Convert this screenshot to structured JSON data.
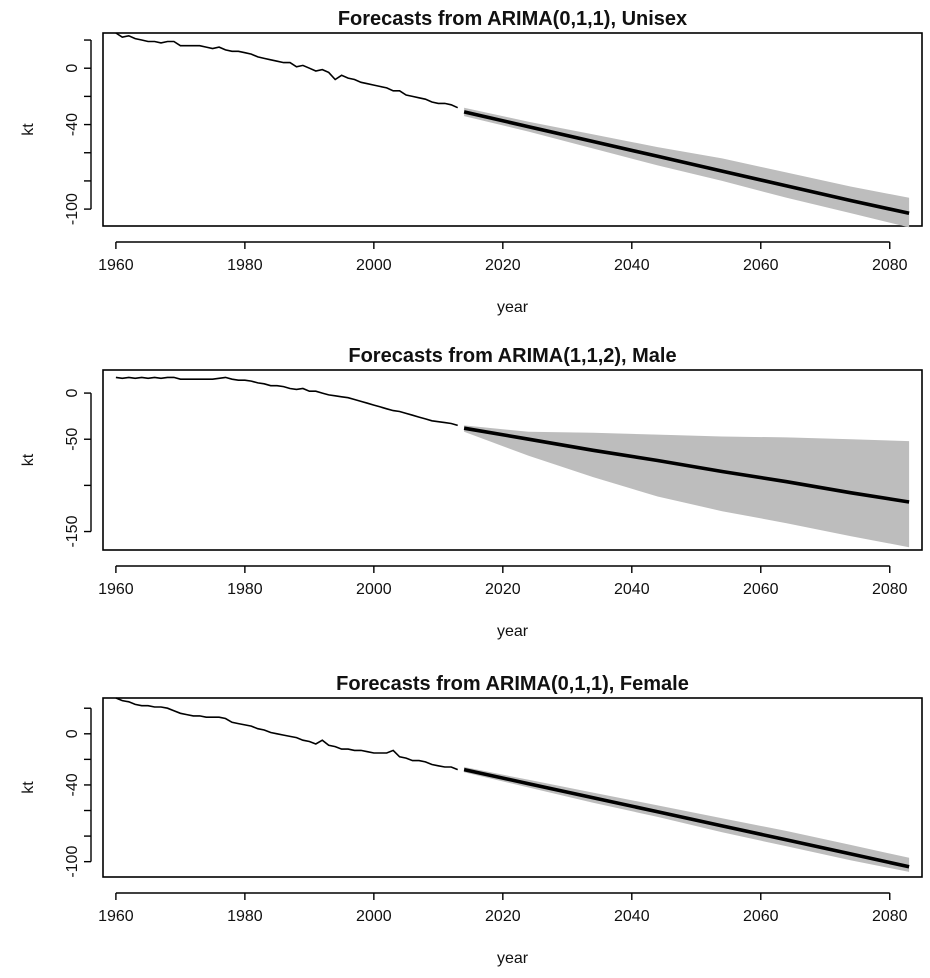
{
  "chart_data": [
    {
      "type": "line",
      "title": "Forecasts from ARIMA(0,1,1), Unisex",
      "xlabel": "year",
      "ylabel": "kt",
      "xlim": [
        1958,
        2085
      ],
      "ylim": [
        -112,
        25
      ],
      "xticks": [
        1960,
        1980,
        2000,
        2020,
        2040,
        2060,
        2080
      ],
      "yticks": [
        20,
        0,
        -20,
        -40,
        -60,
        -80,
        -100
      ],
      "ytick_labels": [
        "",
        "0",
        "",
        "-40",
        "",
        "",
        "-100"
      ],
      "history": {
        "x": [
          1960,
          1961,
          1962,
          1963,
          1964,
          1965,
          1966,
          1967,
          1968,
          1969,
          1970,
          1971,
          1972,
          1973,
          1974,
          1975,
          1976,
          1977,
          1978,
          1979,
          1980,
          1981,
          1982,
          1983,
          1984,
          1985,
          1986,
          1987,
          1988,
          1989,
          1990,
          1991,
          1992,
          1993,
          1994,
          1995,
          1996,
          1997,
          1998,
          1999,
          2000,
          2001,
          2002,
          2003,
          2004,
          2005,
          2006,
          2007,
          2008,
          2009,
          2010,
          2011,
          2012,
          2013
        ],
        "y": [
          25,
          22,
          23,
          21,
          20,
          19,
          19,
          18,
          19,
          19,
          16,
          16,
          16,
          16,
          15,
          14,
          15,
          13,
          12,
          12,
          11,
          10,
          8,
          7,
          6,
          5,
          4,
          4,
          1,
          2,
          0,
          -2,
          -1,
          -3,
          -8,
          -5,
          -7,
          -8,
          -10,
          -11,
          -12,
          -13,
          -14,
          -16,
          -16,
          -19,
          -20,
          -21,
          -22,
          -24,
          -25,
          -25,
          -26,
          -28
        ]
      },
      "forecast": {
        "x": [
          2014,
          2024,
          2034,
          2044,
          2054,
          2064,
          2074,
          2083
        ],
        "mean": [
          -31,
          -41.5,
          -52,
          -62.5,
          -73,
          -83.5,
          -94,
          -103
        ],
        "lower": [
          -34,
          -45,
          -57,
          -69,
          -80,
          -92,
          -103,
          -113
        ],
        "upper": [
          -28,
          -38,
          -47,
          -56,
          -64,
          -74,
          -84,
          -92
        ]
      }
    },
    {
      "type": "line",
      "title": "Forecasts from ARIMA(1,1,2), Male",
      "xlabel": "year",
      "ylabel": "kt",
      "xlim": [
        1958,
        2085
      ],
      "ylim": [
        -170,
        25
      ],
      "xticks": [
        1960,
        1980,
        2000,
        2020,
        2040,
        2060,
        2080
      ],
      "yticks": [
        0,
        -50,
        -100,
        -150
      ],
      "ytick_labels": [
        "0",
        "-50",
        "",
        "-150"
      ],
      "history": {
        "x": [
          1960,
          1961,
          1962,
          1963,
          1964,
          1965,
          1966,
          1967,
          1968,
          1969,
          1970,
          1971,
          1972,
          1973,
          1974,
          1975,
          1976,
          1977,
          1978,
          1979,
          1980,
          1981,
          1982,
          1983,
          1984,
          1985,
          1986,
          1987,
          1988,
          1989,
          1990,
          1991,
          1992,
          1993,
          1994,
          1995,
          1996,
          1997,
          1998,
          1999,
          2000,
          2001,
          2002,
          2003,
          2004,
          2005,
          2006,
          2007,
          2008,
          2009,
          2010,
          2011,
          2012,
          2013
        ],
        "y": [
          17,
          16,
          17,
          16,
          17,
          16,
          17,
          16,
          17,
          17,
          15,
          15,
          15,
          15,
          15,
          15,
          16,
          17,
          15,
          14,
          14,
          13,
          11,
          10,
          8,
          8,
          7,
          5,
          4,
          5,
          2,
          2,
          0,
          -2,
          -3,
          -4,
          -5,
          -7,
          -9,
          -11,
          -13,
          -15,
          -17,
          -19,
          -20,
          -22,
          -24,
          -26,
          -28,
          -30,
          -31,
          -32,
          -33,
          -35
        ]
      },
      "forecast": {
        "x": [
          2014,
          2024,
          2034,
          2044,
          2054,
          2064,
          2074,
          2083
        ],
        "mean": [
          -38,
          -50,
          -62,
          -73,
          -85,
          -96,
          -108,
          -118
        ],
        "lower": [
          -42,
          -68,
          -91,
          -112,
          -128,
          -141,
          -155,
          -167
        ],
        "upper": [
          -35,
          -42,
          -43,
          -45,
          -47,
          -48,
          -50,
          -52
        ]
      }
    },
    {
      "type": "line",
      "title": "Forecasts from ARIMA(0,1,1), Female",
      "xlabel": "year",
      "ylabel": "kt",
      "xlim": [
        1958,
        2085
      ],
      "ylim": [
        -112,
        28
      ],
      "xticks": [
        1960,
        1980,
        2000,
        2020,
        2040,
        2060,
        2080
      ],
      "yticks": [
        20,
        0,
        -20,
        -40,
        -60,
        -80,
        -100
      ],
      "ytick_labels": [
        "",
        "0",
        "",
        "-40",
        "",
        "",
        "-100"
      ],
      "history": {
        "x": [
          1960,
          1961,
          1962,
          1963,
          1964,
          1965,
          1966,
          1967,
          1968,
          1969,
          1970,
          1971,
          1972,
          1973,
          1974,
          1975,
          1976,
          1977,
          1978,
          1979,
          1980,
          1981,
          1982,
          1983,
          1984,
          1985,
          1986,
          1987,
          1988,
          1989,
          1990,
          1991,
          1992,
          1993,
          1994,
          1995,
          1996,
          1997,
          1998,
          1999,
          2000,
          2001,
          2002,
          2003,
          2004,
          2005,
          2006,
          2007,
          2008,
          2009,
          2010,
          2011,
          2012,
          2013
        ],
        "y": [
          28,
          26,
          25,
          23,
          22,
          22,
          21,
          21,
          20,
          18,
          16,
          15,
          14,
          14,
          13,
          13,
          13,
          12,
          9,
          8,
          7,
          6,
          4,
          3,
          1,
          0,
          -1,
          -2,
          -3,
          -5,
          -6,
          -8,
          -5,
          -9,
          -10,
          -12,
          -12,
          -13,
          -13,
          -14,
          -15,
          -15,
          -15,
          -13,
          -18,
          -19,
          -21,
          -21,
          -22,
          -24,
          -25,
          -26,
          -26,
          -28
        ]
      },
      "forecast": {
        "x": [
          2014,
          2024,
          2034,
          2044,
          2054,
          2064,
          2074,
          2083
        ],
        "mean": [
          -28,
          -39,
          -50,
          -61,
          -72,
          -83,
          -94,
          -104
        ],
        "lower": [
          -30,
          -42,
          -54,
          -65,
          -77,
          -88,
          -99,
          -108
        ],
        "upper": [
          -26,
          -36,
          -46,
          -56,
          -66,
          -76,
          -87,
          -97
        ]
      }
    }
  ]
}
